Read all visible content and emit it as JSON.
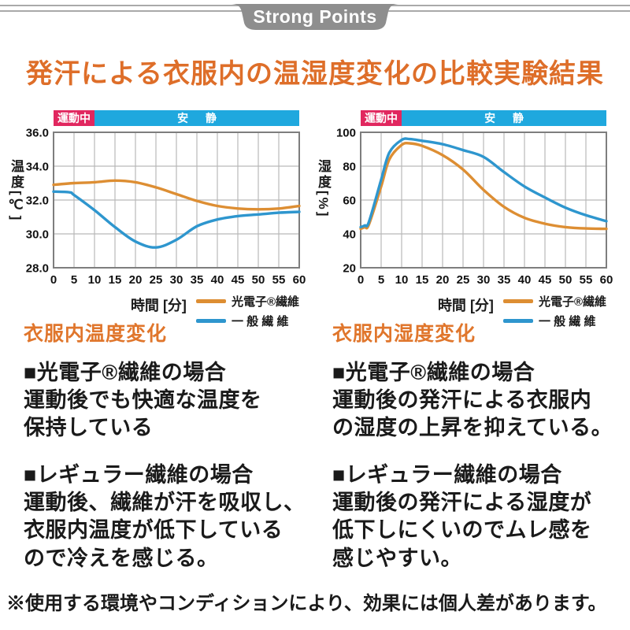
{
  "header": {
    "ribbon_label": "Strong Points"
  },
  "title": "発汗による衣服内の温湿度変化の比較実験結果",
  "colors": {
    "accent_orange": "#de6e29",
    "heading_orange": "#e0762c",
    "ribbon_gray": "#8e8e8e",
    "bar_exercise_red": "#e1275f",
    "bar_rest_cyan": "#1fa8de",
    "line_koudenshi_orange": "#dd8e33",
    "line_general_blue": "#2e96ce",
    "grid_gray": "#b9b9b9",
    "plot_border_gray": "#7e7e7e"
  },
  "charts": {
    "activity_bar": {
      "exercise_label": "運動中",
      "rest_label": "安 静"
    }
  },
  "chart_data": [
    {
      "type": "line",
      "title": "衣服内温度変化",
      "xlabel": "時間 [分]",
      "ylabel": "温度[℃]",
      "xlim": [
        0,
        60
      ],
      "ylim": [
        28,
        36
      ],
      "xticks": [
        0,
        5,
        10,
        15,
        20,
        25,
        30,
        35,
        40,
        45,
        50,
        55,
        60
      ],
      "yticks": [
        28,
        30,
        32,
        34,
        36
      ],
      "ytick_labels": [
        "28.0",
        "30.0",
        "32.0",
        "34.0",
        "36.0"
      ],
      "grid": true,
      "legend_position": "bottom-right",
      "exercise_period_min": [
        0,
        10
      ],
      "series": [
        {
          "name": "光電子®繊維",
          "color": "#dd8e33",
          "x": [
            0,
            5,
            10,
            15,
            20,
            25,
            30,
            35,
            40,
            45,
            50,
            55,
            60
          ],
          "y": [
            32.9,
            33.0,
            33.05,
            33.15,
            33.05,
            32.75,
            32.35,
            31.95,
            31.65,
            31.5,
            31.45,
            31.5,
            31.65
          ]
        },
        {
          "name": "一 般 繊 維",
          "color": "#2e96ce",
          "x": [
            0,
            4,
            5,
            10,
            15,
            20,
            25,
            30,
            35,
            40,
            45,
            50,
            55,
            60
          ],
          "y": [
            32.5,
            32.45,
            32.3,
            31.4,
            30.4,
            29.55,
            29.2,
            29.65,
            30.45,
            30.85,
            31.05,
            31.15,
            31.25,
            31.3
          ]
        }
      ]
    },
    {
      "type": "line",
      "title": "衣服内湿度変化",
      "xlabel": "時間 [分]",
      "ylabel": "湿度[%]",
      "xlim": [
        0,
        60
      ],
      "ylim": [
        20,
        100
      ],
      "xticks": [
        0,
        5,
        10,
        15,
        20,
        25,
        30,
        35,
        40,
        45,
        50,
        55,
        60
      ],
      "yticks": [
        20,
        40,
        60,
        80,
        100
      ],
      "ytick_labels": [
        "20",
        "40",
        "60",
        "80",
        "100"
      ],
      "grid": true,
      "legend_position": "bottom-right",
      "exercise_period_min": [
        0,
        10
      ],
      "series": [
        {
          "name": "光電子®繊維",
          "color": "#dd8e33",
          "x": [
            0,
            1,
            2,
            5,
            7,
            10,
            12,
            15,
            20,
            25,
            30,
            35,
            40,
            45,
            50,
            55,
            60
          ],
          "y": [
            43,
            44,
            45.5,
            68,
            84,
            92.5,
            93.5,
            92,
            86.5,
            78,
            66,
            56,
            49.5,
            46,
            44,
            43.2,
            43
          ]
        },
        {
          "name": "一 般 繊 維",
          "color": "#2e96ce",
          "x": [
            0,
            1,
            2,
            5,
            7,
            10,
            12,
            15,
            20,
            25,
            30,
            35,
            40,
            45,
            50,
            55,
            60
          ],
          "y": [
            44,
            45,
            47,
            72,
            88,
            95.5,
            96,
            95,
            93,
            89.5,
            85.5,
            76.5,
            68,
            61.5,
            55.5,
            51,
            47.5
          ]
        }
      ]
    }
  ],
  "sections": {
    "temperature": {
      "heading": "衣服内温度変化",
      "block1": "■光電子®繊維の場合\n運動後でも快適な温度を\n保持している",
      "block2": "■レギュラー繊維の場合\n運動後、繊維が汗を吸収し、\n衣服内温度が低下している\nので冷えを感じる。"
    },
    "humidity": {
      "heading": "衣服内湿度変化",
      "block1": "■光電子®繊維の場合\n運動後の発汗による衣服内\nの湿度の上昇を抑えている。",
      "block2": "■レギュラー繊維の場合\n運動後の発汗による湿度が\n低下しにくいのでムレ感を\n感じやすい。"
    }
  },
  "footnote": "※使用する環境やコンディションにより、効果には個人差があります。"
}
